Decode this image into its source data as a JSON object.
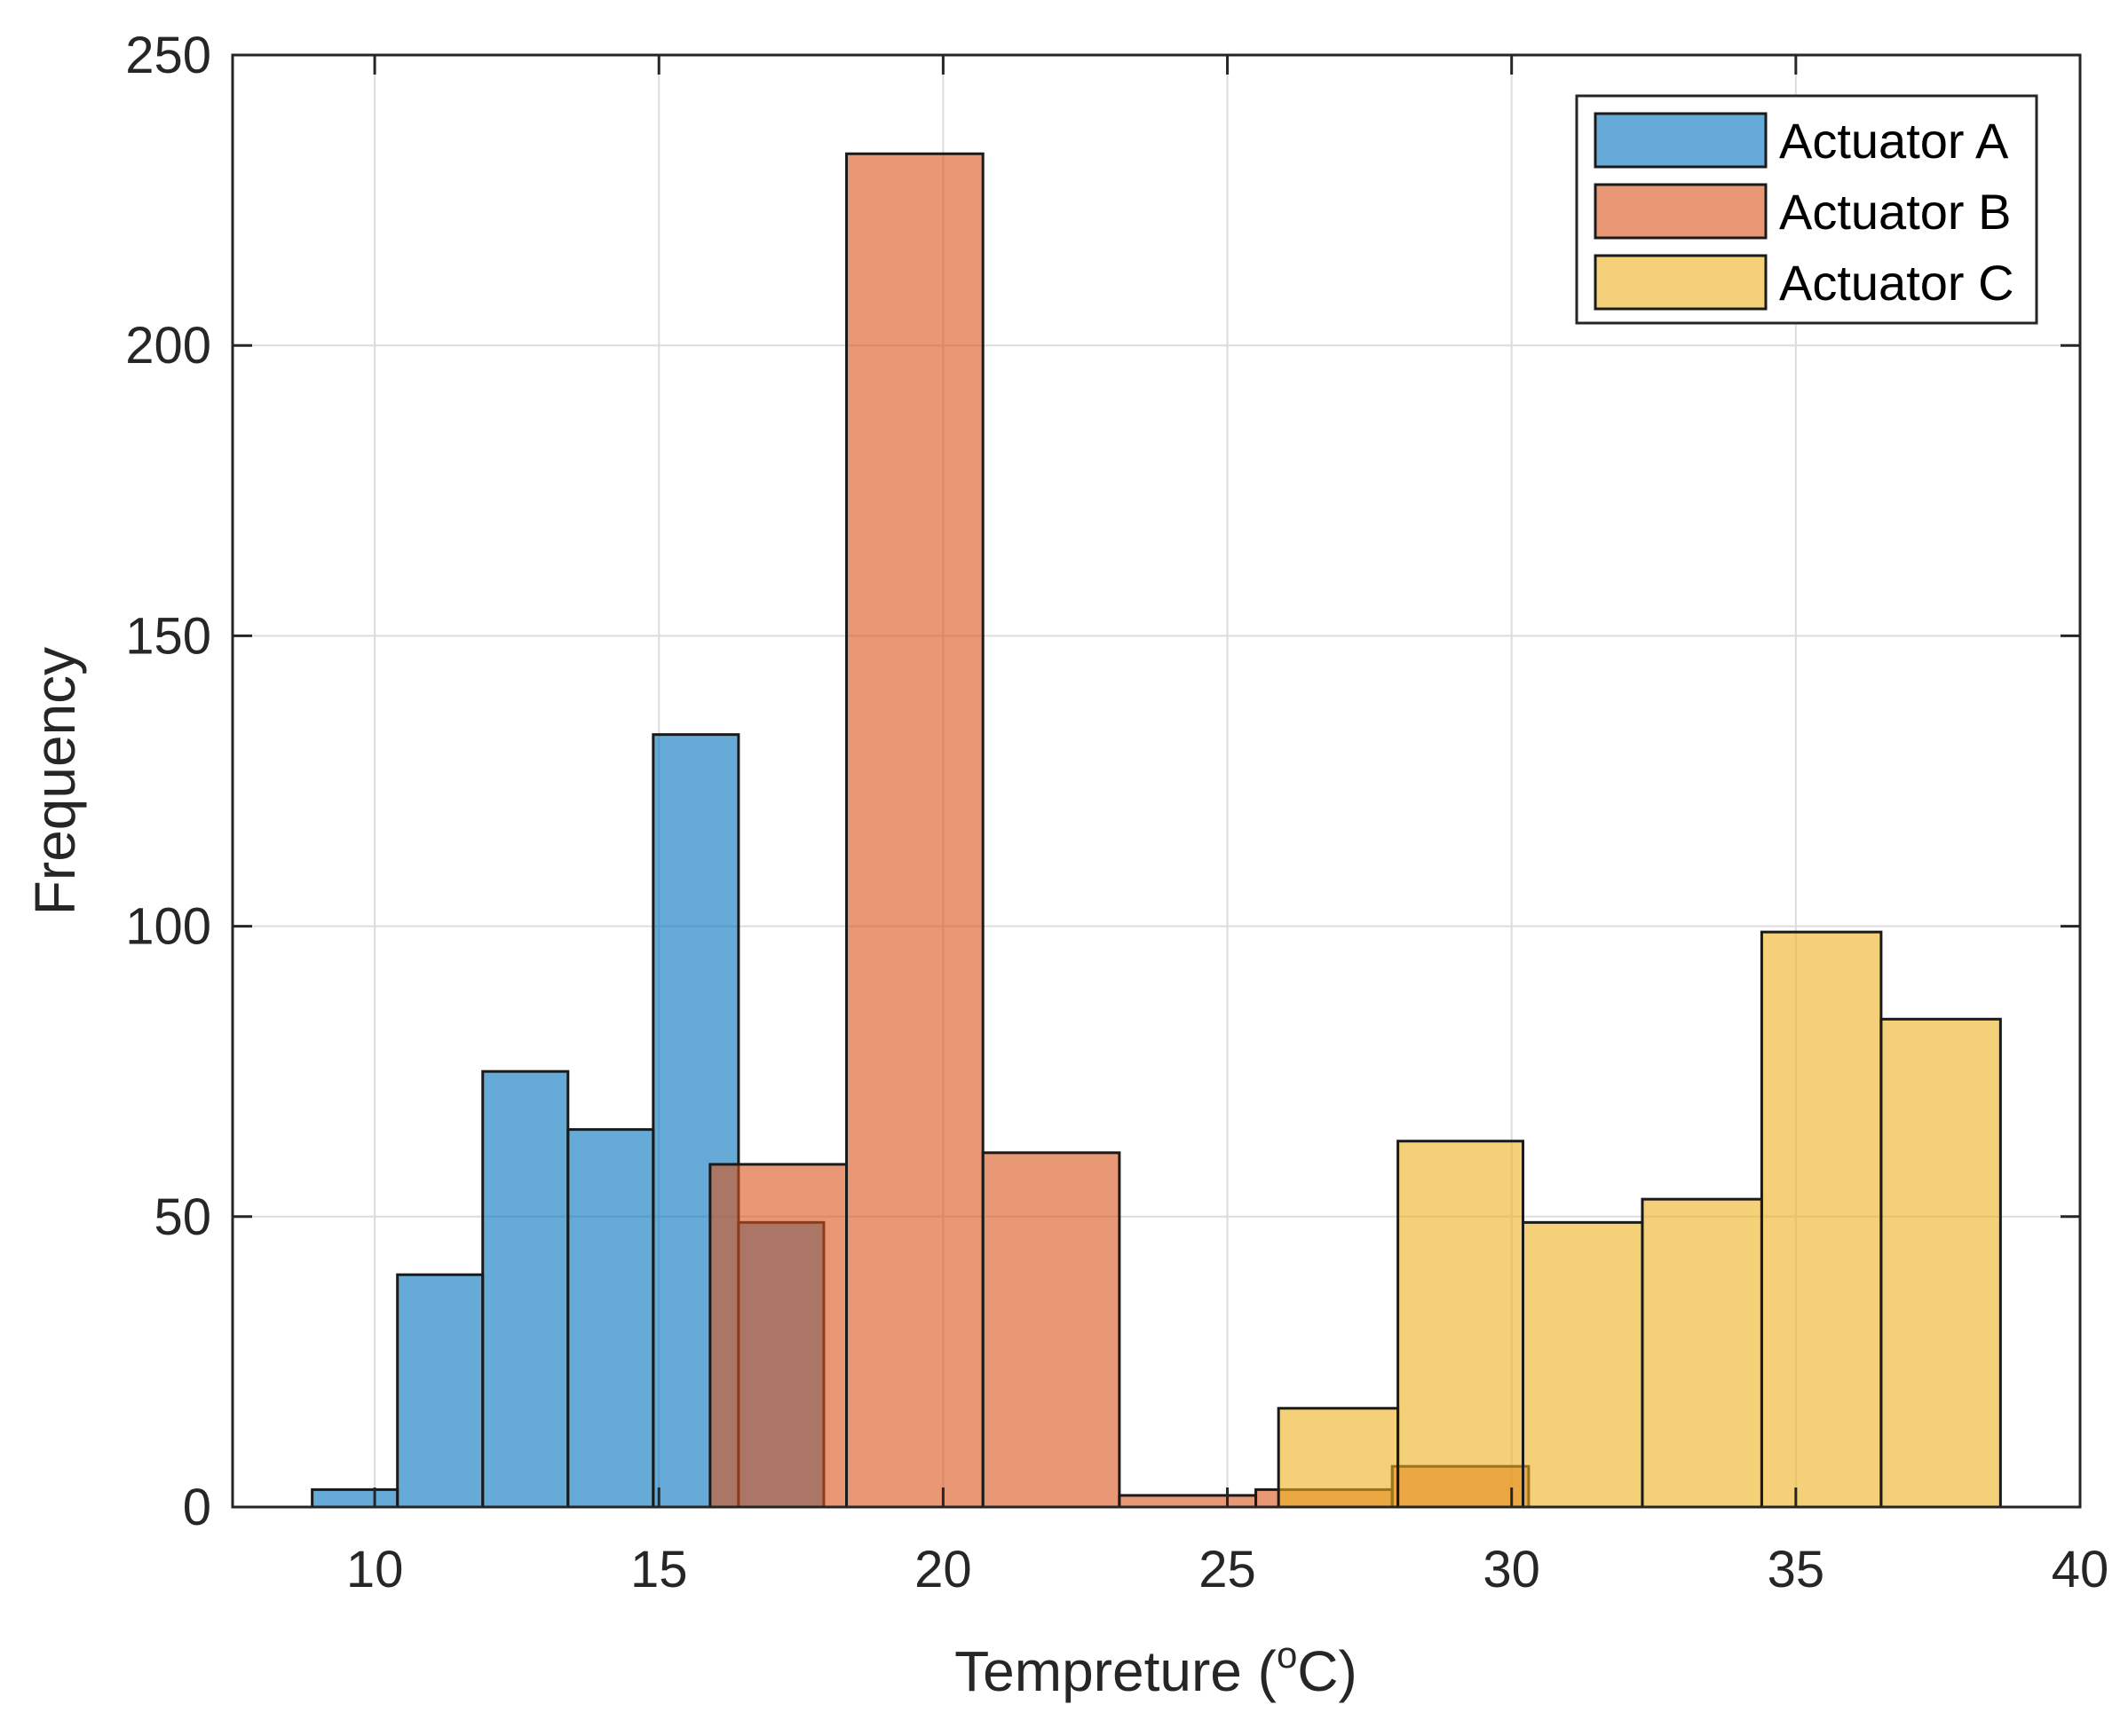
{
  "chart_data": {
    "type": "bar",
    "subtype": "histogram",
    "title": "",
    "xlabel": "Tempreture (",
    "xlabel_sup": "o",
    "xlabel_end": "C)",
    "ylabel": "Frequency",
    "xlim": [
      7.5,
      40
    ],
    "ylim": [
      0,
      250
    ],
    "xticks": [
      10,
      15,
      20,
      25,
      30,
      35,
      40
    ],
    "yticks": [
      0,
      50,
      100,
      150,
      200,
      250
    ],
    "grid": true,
    "legend_position": "top-right",
    "series": [
      {
        "name": "Actuator A",
        "color": "#0072BD",
        "bins": [
          {
            "x0": 8.9,
            "x1": 10.4,
            "count": 3
          },
          {
            "x0": 10.4,
            "x1": 11.9,
            "count": 40
          },
          {
            "x0": 11.9,
            "x1": 13.4,
            "count": 75
          },
          {
            "x0": 13.4,
            "x1": 14.9,
            "count": 65
          },
          {
            "x0": 14.9,
            "x1": 16.4,
            "count": 133
          },
          {
            "x0": 16.4,
            "x1": 17.9,
            "count": 49
          }
        ]
      },
      {
        "name": "Actuator B",
        "color": "#D95319",
        "bins": [
          {
            "x0": 15.9,
            "x1": 18.3,
            "count": 59
          },
          {
            "x0": 18.3,
            "x1": 20.7,
            "count": 233
          },
          {
            "x0": 20.7,
            "x1": 23.1,
            "count": 61
          },
          {
            "x0": 23.1,
            "x1": 25.5,
            "count": 2
          },
          {
            "x0": 25.5,
            "x1": 27.9,
            "count": 3
          },
          {
            "x0": 27.9,
            "x1": 30.3,
            "count": 7
          }
        ]
      },
      {
        "name": "Actuator C",
        "color": "#EDB120",
        "bins": [
          {
            "x0": 25.9,
            "x1": 28.0,
            "count": 17
          },
          {
            "x0": 28.0,
            "x1": 30.2,
            "count": 63
          },
          {
            "x0": 30.2,
            "x1": 32.3,
            "count": 49
          },
          {
            "x0": 32.3,
            "x1": 34.4,
            "count": 53
          },
          {
            "x0": 34.4,
            "x1": 36.5,
            "count": 99
          },
          {
            "x0": 36.5,
            "x1": 38.6,
            "count": 84
          }
        ]
      }
    ]
  }
}
